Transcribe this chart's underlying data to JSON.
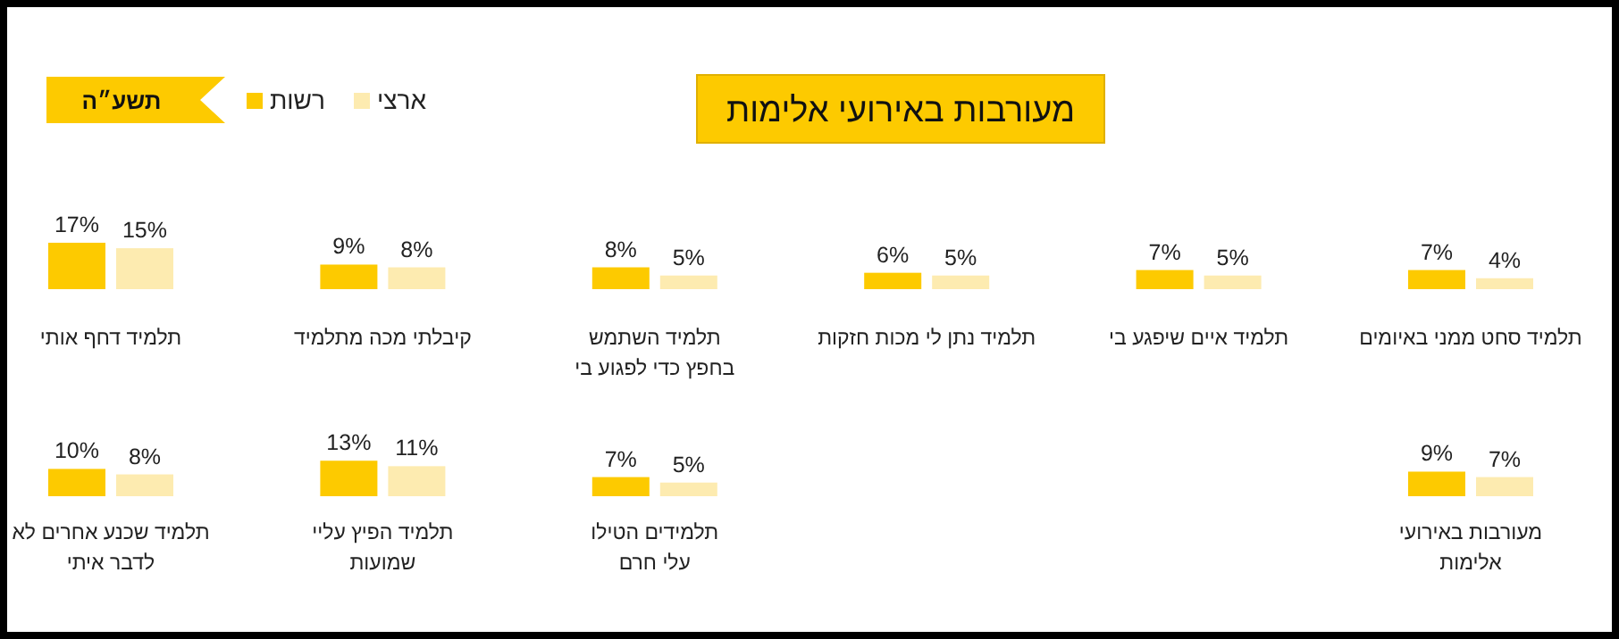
{
  "chart_data": [
    {
      "type": "bar",
      "title": "מעורבות באירועי אלימות",
      "annotations": [
        "תשע״ה"
      ],
      "legend": "top left",
      "categories": [
        "תלמיד דחף אותי",
        "קיבלתי מכה מתלמיד",
        "תלמיד השתמש\nבחפץ כדי לפגוע בי",
        "תלמיד נתן לי מכות חזקות",
        "תלמיד איים שיפגע בי",
        "תלמיד סחט ממני באיומים"
      ],
      "series": [
        {
          "name": "רשות",
          "color": "#fdca00",
          "values": [
            17,
            9,
            8,
            6,
            7,
            7
          ],
          "value_labels": [
            "17%",
            "9%",
            "8%",
            "6%",
            "7%",
            "7%"
          ]
        },
        {
          "name": "ארצי",
          "color": "#fdebb0",
          "values": [
            15,
            8,
            5,
            5,
            5,
            4
          ],
          "value_labels": [
            "15%",
            "8%",
            "5%",
            "5%",
            "5%",
            "4%"
          ]
        }
      ]
    },
    {
      "type": "bar",
      "categories": [
        "תלמיד שכנע אחרים לא\nלדבר איתי",
        "תלמיד הפיץ עליי\nשמועות",
        "תלמידים הטילו\nעלי חרם",
        null,
        null,
        "מעורבות באירועי\nאלימות"
      ],
      "series": [
        {
          "color": "#fdca00",
          "values": [
            10,
            13,
            7,
            null,
            null,
            9
          ],
          "value_labels": [
            "10%",
            "13%",
            "7%",
            null,
            null,
            "9%"
          ]
        },
        {
          "color": "#fdebb0",
          "values": [
            8,
            11,
            5,
            null,
            null,
            7
          ],
          "value_labels": [
            "8%",
            "11%",
            "5%",
            null,
            null,
            "7%"
          ]
        }
      ]
    }
  ]
}
